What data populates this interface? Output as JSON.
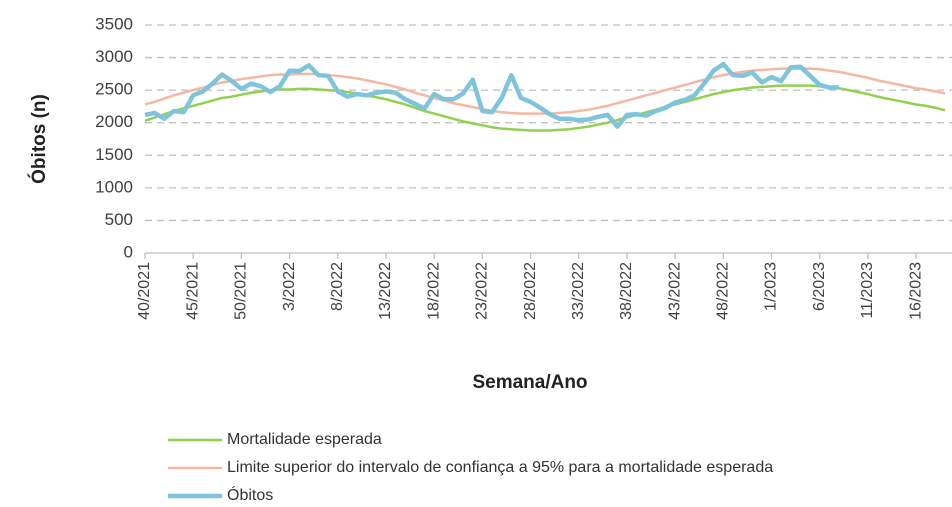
{
  "chart_data": {
    "type": "line",
    "y_label": "Óbitos (n)",
    "x_label": "Semana/Ano",
    "categories": [
      "40/2021",
      null,
      null,
      null,
      null,
      "45/2021",
      null,
      null,
      null,
      null,
      "50/2021",
      null,
      null,
      null,
      null,
      "3/2022",
      null,
      null,
      null,
      null,
      "8/2022",
      null,
      null,
      null,
      null,
      "13/2022",
      null,
      null,
      null,
      null,
      "18/2022",
      null,
      null,
      null,
      null,
      "23/2022",
      null,
      null,
      null,
      null,
      "28/2022",
      null,
      null,
      null,
      null,
      "33/2022",
      null,
      null,
      null,
      null,
      "38/2022",
      null,
      null,
      null,
      null,
      "43/2022",
      null,
      null,
      null,
      null,
      "48/2022",
      null,
      null,
      null,
      null,
      "1/2023",
      null,
      null,
      null,
      null,
      "6/2023",
      null,
      null,
      null,
      null,
      "11/2023",
      null,
      null,
      null,
      null,
      "16/2023",
      null,
      null,
      null
    ],
    "series": [
      {
        "name": "Mortalidade esperada",
        "color": "#92d050",
        "width": 2.5,
        "values": [
          2030,
          2080,
          2130,
          2180,
          2220,
          2260,
          2300,
          2340,
          2380,
          2400,
          2430,
          2460,
          2480,
          2500,
          2510,
          2510,
          2520,
          2520,
          2510,
          2500,
          2490,
          2470,
          2450,
          2420,
          2390,
          2360,
          2320,
          2280,
          2230,
          2180,
          2140,
          2100,
          2060,
          2020,
          1990,
          1960,
          1930,
          1910,
          1900,
          1890,
          1880,
          1880,
          1880,
          1890,
          1900,
          1920,
          1940,
          1970,
          2000,
          2040,
          2080,
          2120,
          2160,
          2200,
          2240,
          2280,
          2320,
          2360,
          2400,
          2440,
          2470,
          2500,
          2520,
          2540,
          2550,
          2560,
          2570,
          2570,
          2570,
          2570,
          2560,
          2550,
          2530,
          2500,
          2470,
          2440,
          2400,
          2370,
          2340,
          2310,
          2280,
          2260,
          2230,
          2190
        ]
      },
      {
        "name": "Limite superior do intervalo de confiança a 95% para a mortalidade esperada",
        "color": "#f4b8a2",
        "width": 2.5,
        "values": [
          2280,
          2320,
          2370,
          2420,
          2460,
          2500,
          2540,
          2580,
          2620,
          2640,
          2670,
          2690,
          2710,
          2730,
          2740,
          2740,
          2750,
          2750,
          2740,
          2730,
          2720,
          2700,
          2680,
          2650,
          2620,
          2590,
          2550,
          2510,
          2460,
          2420,
          2380,
          2340,
          2300,
          2270,
          2240,
          2210,
          2180,
          2160,
          2150,
          2140,
          2140,
          2140,
          2140,
          2150,
          2160,
          2180,
          2200,
          2230,
          2260,
          2300,
          2340,
          2380,
          2420,
          2460,
          2500,
          2540,
          2580,
          2620,
          2660,
          2700,
          2730,
          2760,
          2780,
          2800,
          2810,
          2820,
          2830,
          2830,
          2830,
          2830,
          2820,
          2800,
          2780,
          2750,
          2720,
          2690,
          2650,
          2620,
          2590,
          2560,
          2530,
          2510,
          2480,
          2450
        ]
      },
      {
        "name": "Óbitos",
        "color": "#7ec4dd",
        "width": 4.5,
        "values": [
          2120,
          2150,
          2060,
          2180,
          2160,
          2420,
          2480,
          2600,
          2740,
          2640,
          2520,
          2600,
          2560,
          2470,
          2560,
          2800,
          2790,
          2880,
          2730,
          2720,
          2480,
          2400,
          2440,
          2420,
          2460,
          2480,
          2460,
          2360,
          2290,
          2220,
          2440,
          2360,
          2360,
          2450,
          2660,
          2180,
          2160,
          2380,
          2730,
          2380,
          2320,
          2230,
          2130,
          2060,
          2060,
          2040,
          2050,
          2090,
          2120,
          1940,
          2120,
          2130,
          2110,
          2180,
          2230,
          2310,
          2350,
          2420,
          2600,
          2800,
          2900,
          2730,
          2720,
          2770,
          2620,
          2700,
          2640,
          2850,
          2860,
          2720,
          2580,
          2540,
          2540,
          null,
          null,
          null,
          null,
          null,
          null,
          null,
          null,
          null,
          null,
          null
        ]
      }
    ],
    "ylim": [
      0,
      3500
    ],
    "yticks": [
      0,
      500,
      1000,
      1500,
      2000,
      2500,
      3000,
      3500
    ],
    "grid": true
  }
}
